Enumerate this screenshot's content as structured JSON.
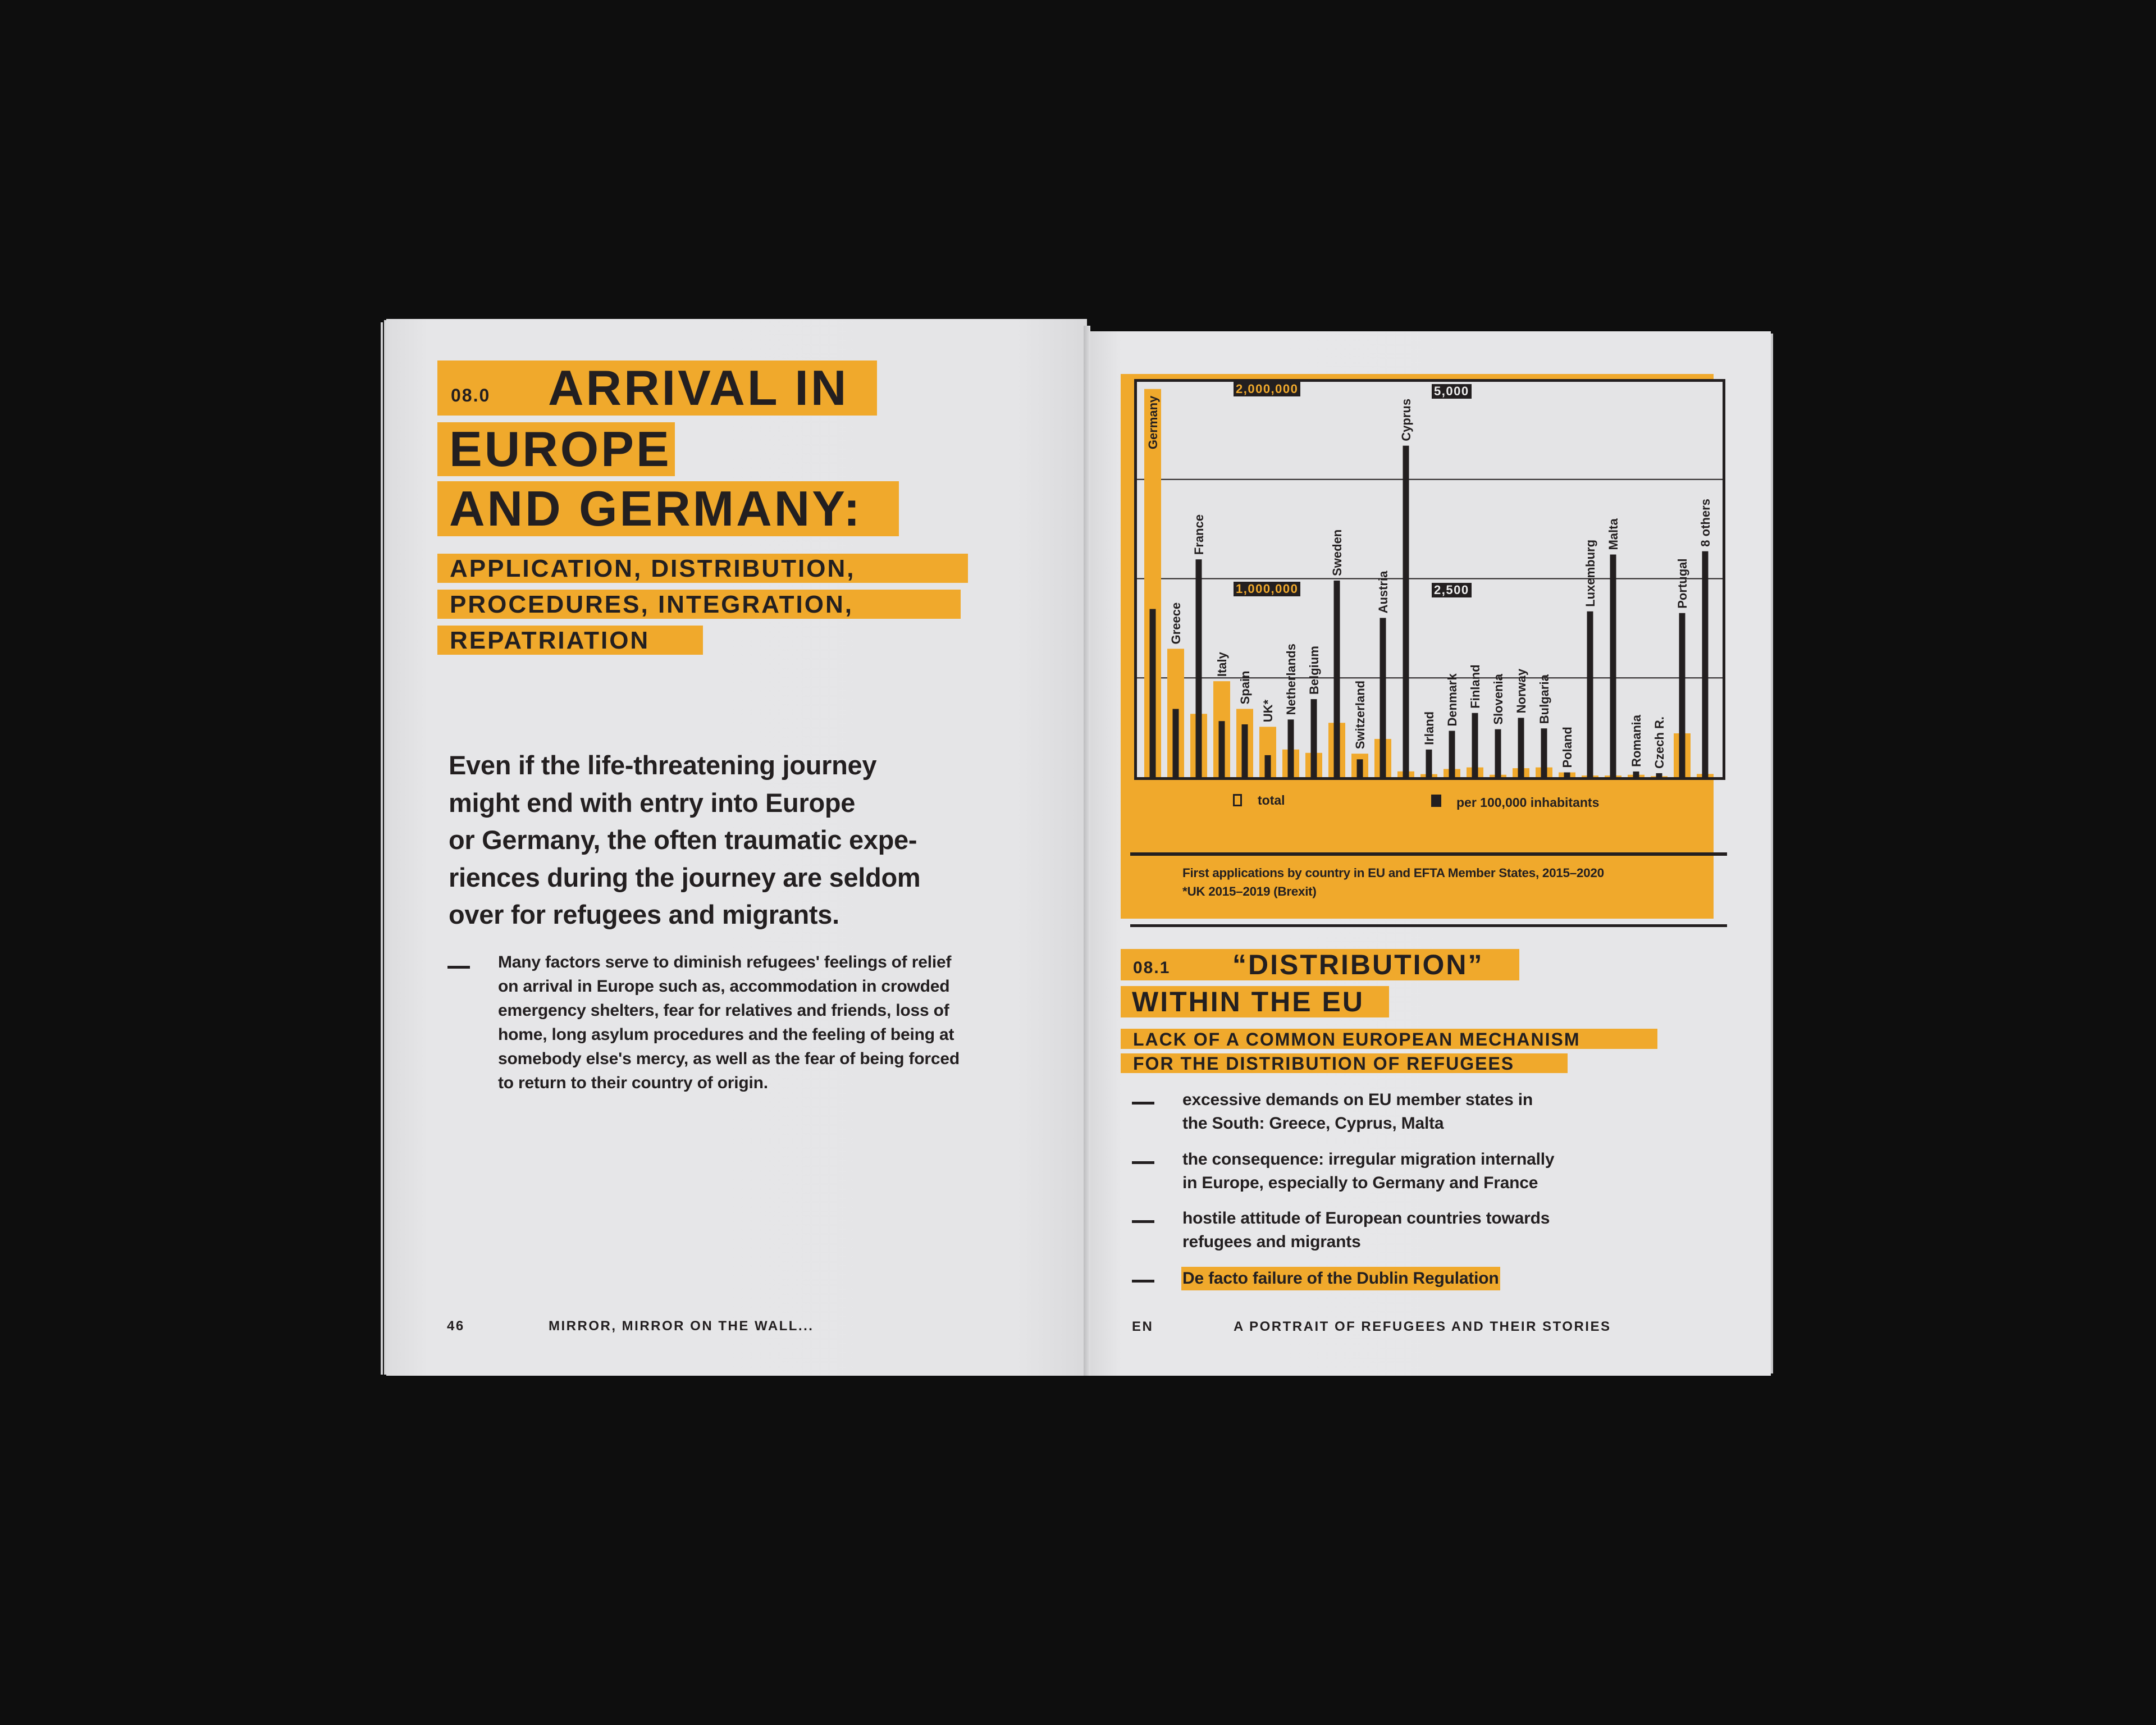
{
  "colors": {
    "background": "#0e0e0e",
    "paper": "#e6e6e8",
    "accent": "#f0a92c",
    "ink": "#231f20"
  },
  "left_page": {
    "section_number": "08.0",
    "title_line1": "ARRIVAL IN",
    "title_line2": "EUROPE",
    "title_line3": "AND GERMANY:",
    "subtitle_lines": [
      "APPLICATION, DISTRIBUTION,",
      "PROCEDURES, INTEGRATION,",
      "REPATRIATION"
    ],
    "lead": "Even if the life-threatening journey\nmight end with entry into Europe\nor Germany, the often traumatic expe-\nriences during the journey are seldom\nover for refugees and migrants.",
    "bullet": "Many factors serve to diminish refugees' feelings of relief\non arrival in Europe such as, accommodation in crowded\nemergency shelters, fear for relatives and friends, loss of\nhome, long asylum procedures and the feeling of being at\nsomebody else's mercy, as well as the fear of being forced\nto return to their country of origin.",
    "page_number": "46",
    "running_title": "MIRROR, MIRROR ON THE WALL..."
  },
  "right_page": {
    "legend": {
      "total": "total",
      "per_capita": "per 100,000 inhabitants"
    },
    "caption": "First applications by country in EU and EFTA Member States, 2015–2020\n*UK 2015–2019 (Brexit)",
    "section_number": "08.1",
    "section_title_line1": "“DISTRIBUTION”",
    "section_title_line2": "WITHIN THE EU",
    "section_subtitle_lines": [
      "LACK OF A COMMON EUROPEAN MECHANISM",
      "FOR THE DISTRIBUTION OF REFUGEES"
    ],
    "bullets": [
      "excessive demands on EU member states in\nthe South: Greece, Cyprus, Malta",
      "the consequence: irregular migration internally\nin Europe, especially to Germany and France",
      "hostile attitude of European countries towards\nrefugees and migrants",
      "De facto failure of the Dublin Regulation"
    ],
    "language": "EN",
    "running_title": "A PORTRAIT OF REFUGEES AND THEIR STORIES"
  },
  "chart_data": {
    "type": "bar",
    "title": "First applications by country in EU and EFTA Member States, 2015–2020",
    "note": "*UK 2015–2019 (Brexit)",
    "categories": [
      "Germany",
      "Greece",
      "France",
      "Italy",
      "Spain",
      "UK*",
      "Netherlands",
      "Belgium",
      "Sweden",
      "Switzerland",
      "Austria",
      "Cyprus",
      "Irland",
      "Denmark",
      "Finland",
      "Slovenia",
      "Norway",
      "Bulgaria",
      "Poland",
      "Luxemburg",
      "Malta",
      "Romania",
      "Czech R.",
      "Portugal",
      "8 others"
    ],
    "series": [
      {
        "name": "total",
        "color": "#f0a92c",
        "axis": "left",
        "values": [
          1950000,
          645000,
          318000,
          482000,
          343000,
          253000,
          139000,
          122000,
          273000,
          118000,
          192000,
          29000,
          15000,
          41000,
          49000,
          12000,
          45000,
          49000,
          24000,
          8000,
          8000,
          12000,
          5000,
          220000,
          16000
        ]
      },
      {
        "name": "per 100,000 inhabitants",
        "color": "#231f20",
        "axis": "right",
        "values": [
          2112,
          857,
          2735,
          704,
          663,
          276,
          724,
          980,
          2469,
          224,
          2000,
          4163,
          347,
          582,
          806,
          602,
          745,
          612,
          60,
          2082,
          2796,
          71,
          50,
          2061,
          2837
        ]
      }
    ],
    "left_axis": {
      "ylim": [
        0,
        2000000
      ],
      "tick_labels": [
        "2,000,000",
        "1,000,000"
      ]
    },
    "right_axis": {
      "ylim": [
        0,
        5000
      ],
      "tick_labels": [
        "5,000",
        "2,500"
      ]
    },
    "gridlines": [
      0.25,
      0.5,
      0.75
    ],
    "legend_position": "bottom"
  }
}
